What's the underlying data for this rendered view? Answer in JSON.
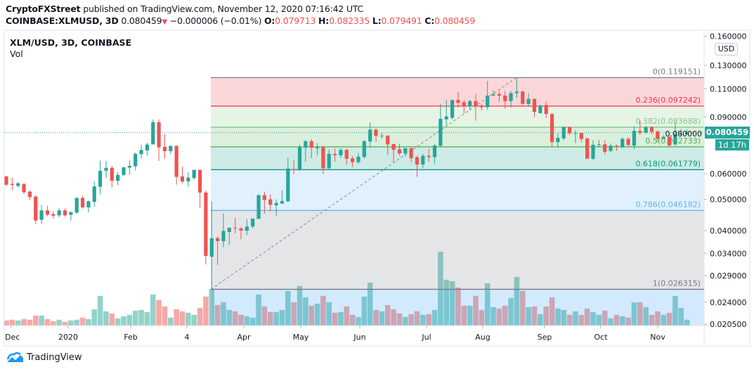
{
  "header": {
    "publisher": "CryptoFXStreet",
    "published_text": "published on TradingView.com, November 12, 2020 07:16:42 UTC",
    "symbol": "COINBASE:XLMUSD, 3D",
    "last": "0.080459",
    "change": "−0.000006 (−0.01%)",
    "o_label": "O:",
    "o": "0.079713",
    "h_label": "H:",
    "h": "0.082335",
    "l_label": "L:",
    "l": "0.079491",
    "c_label": "C:",
    "c": "0.080459",
    "direction_icon": "triangle-down-icon"
  },
  "legend": {
    "title": "XLM/USD, 3D, COINBASE",
    "volume": "Vol"
  },
  "price_axis": {
    "currency": "USD",
    "ticks": [
      "0.160000",
      "0.130000",
      "0.110000",
      "0.090000",
      "0.080000",
      "0.060000",
      "0.050000",
      "0.040000",
      "0.034000",
      "0.029000",
      "0.024000",
      "0.020500"
    ],
    "last_price_label": "0.080459",
    "countdown": "1d 17h"
  },
  "time_axis": {
    "ticks": [
      "Dec",
      "2020",
      "Feb",
      "4",
      "Apr",
      "May",
      "Jun",
      "Jul",
      "Aug",
      "Sep",
      "Oct",
      "Nov"
    ]
  },
  "branding": {
    "logo_text": "TradingView"
  },
  "colors": {
    "up": "#26a69a",
    "down": "#ef5350",
    "vol_up": "#93d2c9",
    "vol_down": "#f6a9a6"
  },
  "chart_data": {
    "type": "candlestick",
    "title": "XLM/USD, 3D, COINBASE",
    "y_scale": "log",
    "ylim": [
      0.0205,
      0.16
    ],
    "xlim": [
      "Dec 2019",
      "Nov 2020"
    ],
    "grid": false,
    "last_price": 0.080459,
    "ohlc": [
      [
        0.0589,
        0.0591,
        0.055,
        0.0555
      ],
      [
        0.0558,
        0.0583,
        0.0534,
        0.0554
      ],
      [
        0.055,
        0.0565,
        0.0544,
        0.0561
      ],
      [
        0.0558,
        0.0561,
        0.052,
        0.0526
      ],
      [
        0.0528,
        0.0533,
        0.0497,
        0.0508
      ],
      [
        0.051,
        0.0515,
        0.0419,
        0.043
      ],
      [
        0.0432,
        0.048,
        0.0419,
        0.0462
      ],
      [
        0.0462,
        0.0477,
        0.0443,
        0.0448
      ],
      [
        0.045,
        0.0459,
        0.0435,
        0.0445
      ],
      [
        0.0446,
        0.0469,
        0.044,
        0.0462
      ],
      [
        0.0462,
        0.0469,
        0.0443,
        0.0446
      ],
      [
        0.0448,
        0.0459,
        0.043,
        0.0456
      ],
      [
        0.0455,
        0.0508,
        0.0451,
        0.0505
      ],
      [
        0.0505,
        0.0513,
        0.0468,
        0.0472
      ],
      [
        0.0472,
        0.0496,
        0.0455,
        0.0493
      ],
      [
        0.0491,
        0.0569,
        0.0474,
        0.0548
      ],
      [
        0.0547,
        0.0659,
        0.0518,
        0.0613
      ],
      [
        0.0613,
        0.0659,
        0.0583,
        0.0626
      ],
      [
        0.0626,
        0.0635,
        0.0544,
        0.0571
      ],
      [
        0.0571,
        0.0607,
        0.0553,
        0.0595
      ],
      [
        0.0595,
        0.0631,
        0.0589,
        0.0628
      ],
      [
        0.0627,
        0.066,
        0.0596,
        0.0635
      ],
      [
        0.0633,
        0.0698,
        0.0615,
        0.0692
      ],
      [
        0.069,
        0.0739,
        0.0668,
        0.0711
      ],
      [
        0.0709,
        0.0749,
        0.0682,
        0.0739
      ],
      [
        0.074,
        0.0884,
        0.074,
        0.0867
      ],
      [
        0.0867,
        0.0885,
        0.0658,
        0.0725
      ],
      [
        0.0727,
        0.0796,
        0.0668,
        0.0705
      ],
      [
        0.0705,
        0.0735,
        0.069,
        0.0732
      ],
      [
        0.0732,
        0.0735,
        0.0555,
        0.0587
      ],
      [
        0.0589,
        0.0631,
        0.056,
        0.0568
      ],
      [
        0.0568,
        0.0608,
        0.0547,
        0.0584
      ],
      [
        0.0582,
        0.0617,
        0.0576,
        0.0617
      ],
      [
        0.0617,
        0.0617,
        0.047,
        0.0525
      ],
      [
        0.0525,
        0.0533,
        0.0314,
        0.0334
      ],
      [
        0.0332,
        0.0493,
        0.0263,
        0.0379
      ],
      [
        0.0379,
        0.0384,
        0.0313,
        0.0371
      ],
      [
        0.0371,
        0.0452,
        0.0355,
        0.0399
      ],
      [
        0.0396,
        0.041,
        0.0361,
        0.0408
      ],
      [
        0.0408,
        0.0438,
        0.0392,
        0.0407
      ],
      [
        0.0406,
        0.0411,
        0.0376,
        0.04
      ],
      [
        0.04,
        0.0434,
        0.0388,
        0.0412
      ],
      [
        0.0412,
        0.0436,
        0.0407,
        0.0436
      ],
      [
        0.0435,
        0.0518,
        0.0435,
        0.0515
      ],
      [
        0.0515,
        0.0528,
        0.0452,
        0.0498
      ],
      [
        0.05,
        0.0518,
        0.0459,
        0.0481
      ],
      [
        0.0479,
        0.05,
        0.0444,
        0.0487
      ],
      [
        0.0485,
        0.0533,
        0.0484,
        0.0494
      ],
      [
        0.0493,
        0.0672,
        0.0491,
        0.0623
      ],
      [
        0.062,
        0.066,
        0.0599,
        0.0618
      ],
      [
        0.0617,
        0.0739,
        0.0612,
        0.0725
      ],
      [
        0.0723,
        0.0764,
        0.0655,
        0.0757
      ],
      [
        0.0757,
        0.0768,
        0.0671,
        0.0723
      ],
      [
        0.072,
        0.0747,
        0.0685,
        0.0725
      ],
      [
        0.0725,
        0.0732,
        0.0599,
        0.0624
      ],
      [
        0.0624,
        0.0713,
        0.0621,
        0.0692
      ],
      [
        0.0691,
        0.0717,
        0.0655,
        0.0685
      ],
      [
        0.0685,
        0.072,
        0.0671,
        0.0711
      ],
      [
        0.0711,
        0.0717,
        0.064,
        0.0668
      ],
      [
        0.067,
        0.0682,
        0.0629,
        0.0652
      ],
      [
        0.0652,
        0.0697,
        0.0644,
        0.0678
      ],
      [
        0.0677,
        0.0764,
        0.0668,
        0.0757
      ],
      [
        0.0755,
        0.0865,
        0.0723,
        0.0822
      ],
      [
        0.0822,
        0.0829,
        0.0752,
        0.0786
      ],
      [
        0.0786,
        0.0803,
        0.0771,
        0.0788
      ],
      [
        0.0788,
        0.0788,
        0.0685,
        0.074
      ],
      [
        0.0742,
        0.0742,
        0.0652,
        0.0712
      ],
      [
        0.0714,
        0.0742,
        0.0682,
        0.0694
      ],
      [
        0.0694,
        0.072,
        0.0679,
        0.072
      ],
      [
        0.072,
        0.0723,
        0.0652,
        0.0671
      ],
      [
        0.0675,
        0.0682,
        0.0587,
        0.0641
      ],
      [
        0.0641,
        0.0692,
        0.0627,
        0.0682
      ],
      [
        0.0682,
        0.0717,
        0.0654,
        0.0676
      ],
      [
        0.0676,
        0.0742,
        0.0646,
        0.0734
      ],
      [
        0.0733,
        0.0988,
        0.0723,
        0.0888
      ],
      [
        0.0885,
        0.1016,
        0.0849,
        0.0903
      ],
      [
        0.0894,
        0.1019,
        0.0885,
        0.1015
      ],
      [
        0.1016,
        0.1075,
        0.0962,
        0.0995
      ],
      [
        0.0999,
        0.1017,
        0.0925,
        0.0972
      ],
      [
        0.0969,
        0.1017,
        0.0946,
        0.1008
      ],
      [
        0.1008,
        0.106,
        0.0877,
        0.0969
      ],
      [
        0.0969,
        0.0988,
        0.0943,
        0.0965
      ],
      [
        0.0965,
        0.1163,
        0.0946,
        0.1048
      ],
      [
        0.1049,
        0.109,
        0.1044,
        0.106
      ],
      [
        0.106,
        0.1083,
        0.1,
        0.1048
      ],
      [
        0.1048,
        0.1083,
        0.0954,
        0.1008
      ],
      [
        0.1008,
        0.1083,
        0.0962,
        0.1067
      ],
      [
        0.1067,
        0.1192,
        0.103,
        0.1079
      ],
      [
        0.1079,
        0.1087,
        0.098,
        0.0988
      ],
      [
        0.0988,
        0.1065,
        0.0967,
        0.1024
      ],
      [
        0.1024,
        0.1024,
        0.0898,
        0.0933
      ],
      [
        0.0925,
        0.0981,
        0.0922,
        0.0976
      ],
      [
        0.098,
        0.1007,
        0.0894,
        0.0919
      ],
      [
        0.0919,
        0.0926,
        0.0726,
        0.0752
      ],
      [
        0.0752,
        0.0801,
        0.0724,
        0.0775
      ],
      [
        0.0772,
        0.0841,
        0.0763,
        0.0838
      ],
      [
        0.0838,
        0.084,
        0.079,
        0.0801
      ],
      [
        0.0801,
        0.082,
        0.0747,
        0.0803
      ],
      [
        0.0803,
        0.0803,
        0.0752,
        0.0769
      ],
      [
        0.0772,
        0.0775,
        0.0668,
        0.0668
      ],
      [
        0.0668,
        0.0761,
        0.0663,
        0.0738
      ],
      [
        0.0738,
        0.0763,
        0.0724,
        0.074
      ],
      [
        0.074,
        0.0763,
        0.0688,
        0.0702
      ],
      [
        0.0706,
        0.0745,
        0.0702,
        0.0733
      ],
      [
        0.0733,
        0.074,
        0.0706,
        0.0731
      ],
      [
        0.0724,
        0.0778,
        0.0723,
        0.077
      ],
      [
        0.077,
        0.0778,
        0.073,
        0.0737
      ],
      [
        0.0734,
        0.084,
        0.0715,
        0.0815
      ],
      [
        0.0815,
        0.0878,
        0.0792,
        0.0804
      ],
      [
        0.0804,
        0.0846,
        0.0801,
        0.0837
      ],
      [
        0.0837,
        0.0843,
        0.0795,
        0.0809
      ],
      [
        0.0812,
        0.0818,
        0.0755,
        0.077
      ],
      [
        0.077,
        0.079,
        0.0767,
        0.0781
      ],
      [
        0.0781,
        0.079,
        0.0727,
        0.0734
      ],
      [
        0.074,
        0.0866,
        0.0733,
        0.0796
      ],
      [
        0.0793,
        0.0825,
        0.0781,
        0.0797
      ],
      [
        0.079713,
        0.082335,
        0.079491,
        0.080459
      ]
    ],
    "volume": [
      22,
      25,
      22,
      28,
      25,
      43,
      43,
      28,
      19,
      25,
      16,
      22,
      25,
      34,
      28,
      70,
      127,
      61,
      52,
      31,
      40,
      46,
      64,
      67,
      58,
      133,
      109,
      82,
      34,
      70,
      61,
      55,
      46,
      76,
      124,
      157,
      88,
      100,
      67,
      61,
      46,
      40,
      34,
      133,
      82,
      58,
      58,
      67,
      148,
      100,
      169,
      121,
      85,
      94,
      127,
      100,
      55,
      58,
      82,
      46,
      37,
      124,
      184,
      67,
      61,
      88,
      70,
      52,
      37,
      49,
      61,
      46,
      49,
      67,
      316,
      196,
      190,
      163,
      85,
      85,
      127,
      67,
      181,
      79,
      73,
      85,
      118,
      208,
      148,
      79,
      82,
      49,
      82,
      121,
      73,
      67,
      46,
      61,
      46,
      73,
      58,
      46,
      64,
      31,
      46,
      40,
      34,
      100,
      100,
      79,
      46,
      61,
      46,
      55,
      127,
      76,
      25
    ],
    "fibonacci": [
      {
        "level": "0",
        "price": 0.119151,
        "label": "0(0.119151)",
        "color": "#787b86"
      },
      {
        "level": "0.236",
        "price": 0.097242,
        "label": "0.236(0.097242)",
        "color": "#f23645"
      },
      {
        "level": "0.382",
        "price": 0.083688,
        "label": "0.382(0.083688)",
        "color": "#81c784"
      },
      {
        "level": "0.5",
        "price": 0.072733,
        "label": "0.5(0.072733)",
        "color": "#4caf50"
      },
      {
        "level": "0.618",
        "price": 0.061779,
        "label": "0.618(0.061779)",
        "color": "#089981"
      },
      {
        "level": "0.786",
        "price": 0.046182,
        "label": "0.786(0.046182)",
        "color": "#64b5f6"
      },
      {
        "level": "1",
        "price": 0.026315,
        "label": "1(0.026315)",
        "color": "#787b86"
      }
    ],
    "fib_zone_colors": [
      "rgba(242,54,69,0.2)",
      "rgba(129,199,132,0.2)",
      "rgba(76,175,80,0.2)",
      "rgba(8,153,129,0.2)",
      "rgba(100,181,246,0.2)",
      "rgba(120,123,134,0.2)",
      "rgba(33,150,243,0.2)"
    ]
  }
}
